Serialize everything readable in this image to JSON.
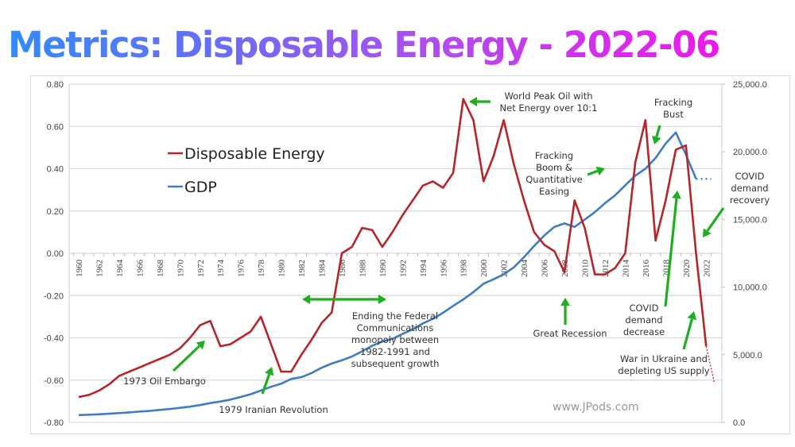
{
  "page_title": "Metrics: Disposable Energy - 2022-06",
  "watermark": "www.JPods.com",
  "colors": {
    "disposable_energy": "#b5262a",
    "gdp": "#3f7cc4",
    "annotation_arrow": "#1fae1f",
    "grid": "#d9d9d9"
  },
  "chart_data": {
    "type": "line",
    "title": "Metrics: Disposable Energy - 2022-06",
    "xlabel": "",
    "ylabel": "",
    "y2label": "",
    "x": [
      1960,
      1961,
      1962,
      1963,
      1964,
      1965,
      1966,
      1967,
      1968,
      1969,
      1970,
      1971,
      1972,
      1973,
      1974,
      1975,
      1976,
      1977,
      1978,
      1979,
      1980,
      1981,
      1982,
      1983,
      1984,
      1985,
      1986,
      1987,
      1988,
      1989,
      1990,
      1991,
      1992,
      1993,
      1994,
      1995,
      1996,
      1997,
      1998,
      1999,
      2000,
      2001,
      2002,
      2003,
      2004,
      2005,
      2006,
      2007,
      2008,
      2009,
      2010,
      2011,
      2012,
      2013,
      2014,
      2015,
      2016,
      2017,
      2018,
      2019,
      2020,
      2021,
      2022
    ],
    "xticks": [
      "1960",
      "1962",
      "1964",
      "1966",
      "1968",
      "1970",
      "1972",
      "1974",
      "1976",
      "1978",
      "1980",
      "1982",
      "1984",
      "1986",
      "1988",
      "1990",
      "1992",
      "1994",
      "1996",
      "1998",
      "2000",
      "2002",
      "2004",
      "2006",
      "2008",
      "2010",
      "2012",
      "2014",
      "2016",
      "2018",
      "2020",
      "2022"
    ],
    "xlim": [
      1959.5,
      2023.5
    ],
    "ylim": [
      -0.8,
      0.8
    ],
    "yticks": [
      "0.80",
      "0.60",
      "0.40",
      "0.20",
      "0.00",
      "-0.20",
      "-0.40",
      "-0.60",
      "-0.80"
    ],
    "y2lim": [
      0,
      25000
    ],
    "y2ticks": [
      "25,000.0",
      "20,000.0",
      "15,000.0",
      "10,000.0",
      "5,000.0",
      "0.0"
    ],
    "grid": true,
    "legend_position": "upper-left",
    "series": [
      {
        "name": "Disposable Energy",
        "axis": "left",
        "values": [
          -0.68,
          -0.67,
          -0.65,
          -0.62,
          -0.58,
          -0.56,
          -0.54,
          -0.52,
          -0.5,
          -0.48,
          -0.45,
          -0.4,
          -0.34,
          -0.32,
          -0.44,
          -0.43,
          -0.4,
          -0.37,
          -0.3,
          -0.43,
          -0.56,
          -0.56,
          -0.48,
          -0.41,
          -0.33,
          -0.28,
          0.0,
          0.03,
          0.12,
          0.11,
          0.03,
          0.1,
          0.18,
          0.25,
          0.32,
          0.34,
          0.31,
          0.38,
          0.73,
          0.63,
          0.34,
          0.46,
          0.63,
          0.42,
          0.25,
          0.1,
          0.04,
          0.01,
          -0.09,
          0.25,
          0.12,
          -0.1,
          -0.1,
          -0.07,
          0.0,
          0.43,
          0.63,
          0.06,
          0.25,
          0.49,
          0.51,
          0.0,
          -0.44
        ],
        "projection": {
          "x": [
            2022,
            2022.8
          ],
          "values": [
            -0.44,
            -0.61
          ],
          "style": "dotted"
        }
      },
      {
        "name": "GDP",
        "axis": "right",
        "values": [
          540,
          565,
          600,
          640,
          690,
          740,
          800,
          850,
          920,
          990,
          1075,
          1165,
          1280,
          1425,
          1545,
          1685,
          1875,
          2085,
          2355,
          2630,
          2860,
          3210,
          3345,
          3640,
          4040,
          4350,
          4590,
          4870,
          5250,
          5660,
          5980,
          6175,
          6540,
          6880,
          7310,
          7660,
          8100,
          8610,
          9090,
          9630,
          10250,
          10580,
          10940,
          11460,
          12210,
          13040,
          13810,
          14450,
          14710,
          14450,
          14990,
          15540,
          16200,
          16780,
          17520,
          18240,
          18750,
          19540,
          20610,
          21430,
          19800,
          18000,
          null
        ],
        "projection": {
          "x": [
            2021,
            2022.5
          ],
          "values": [
            18000,
            18000
          ],
          "style": "dotted"
        }
      }
    ],
    "annotations": [
      {
        "id": "oil-embargo",
        "lines": [
          "1973 Oil Embargo"
        ]
      },
      {
        "id": "iranian-revolution",
        "lines": [
          "1979 Iranian Revolution"
        ]
      },
      {
        "id": "federal-communications",
        "lines": [
          "Ending the Federal",
          "Communications",
          "monopoly between",
          "1982-1991 and",
          "subsequent growth"
        ]
      },
      {
        "id": "peak-oil",
        "lines": [
          "World Peak Oil with",
          "Net Energy over 10:1"
        ]
      },
      {
        "id": "fracking-boom",
        "lines": [
          "Fracking",
          "Boom &",
          "Quantitative",
          "Easing"
        ]
      },
      {
        "id": "fracking-bust",
        "lines": [
          "Fracking",
          "Bust"
        ]
      },
      {
        "id": "great-recession",
        "lines": [
          "Great Recession"
        ]
      },
      {
        "id": "covid-decrease",
        "lines": [
          "COVID",
          "demand",
          "decrease"
        ]
      },
      {
        "id": "covid-recovery",
        "lines": [
          "COVID",
          "demand",
          "recovery"
        ]
      },
      {
        "id": "ukraine",
        "lines": [
          "War in Ukraine and",
          "depleting US supply"
        ]
      }
    ]
  }
}
